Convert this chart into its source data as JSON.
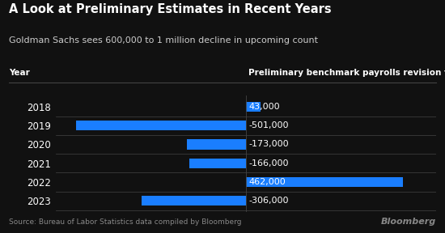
{
  "title": "A Look at Preliminary Estimates in Recent Years",
  "subtitle": "Goldman Sachs sees 600,000 to 1 million decline in upcoming count",
  "col_header_year": "Year",
  "col_header_data": "Preliminary benchmark payrolls revision for March of that year",
  "years": [
    "2018",
    "2019",
    "2020",
    "2021",
    "2022",
    "2023"
  ],
  "values": [
    43000,
    -501000,
    -173000,
    -166000,
    462000,
    -306000
  ],
  "labels": [
    "43,000",
    "-501,000",
    "-173,000",
    "-166,000",
    "462,000",
    "-306,000"
  ],
  "bar_color": "#1a7eff",
  "background_color": "#111111",
  "text_color": "#ffffff",
  "subtitle_color": "#cccccc",
  "source_color": "#888888",
  "line_color": "#444444",
  "source_text": "Source: Bureau of Labor Statistics data compiled by Bloomberg",
  "bloomberg_text": "Bloomberg",
  "xlim": [
    -560000,
    560000
  ],
  "title_fontsize": 10.5,
  "subtitle_fontsize": 8,
  "year_fontsize": 8.5,
  "label_fontsize": 8,
  "header_fontsize": 7.5,
  "source_fontsize": 6.5,
  "bloomberg_fontsize": 8
}
